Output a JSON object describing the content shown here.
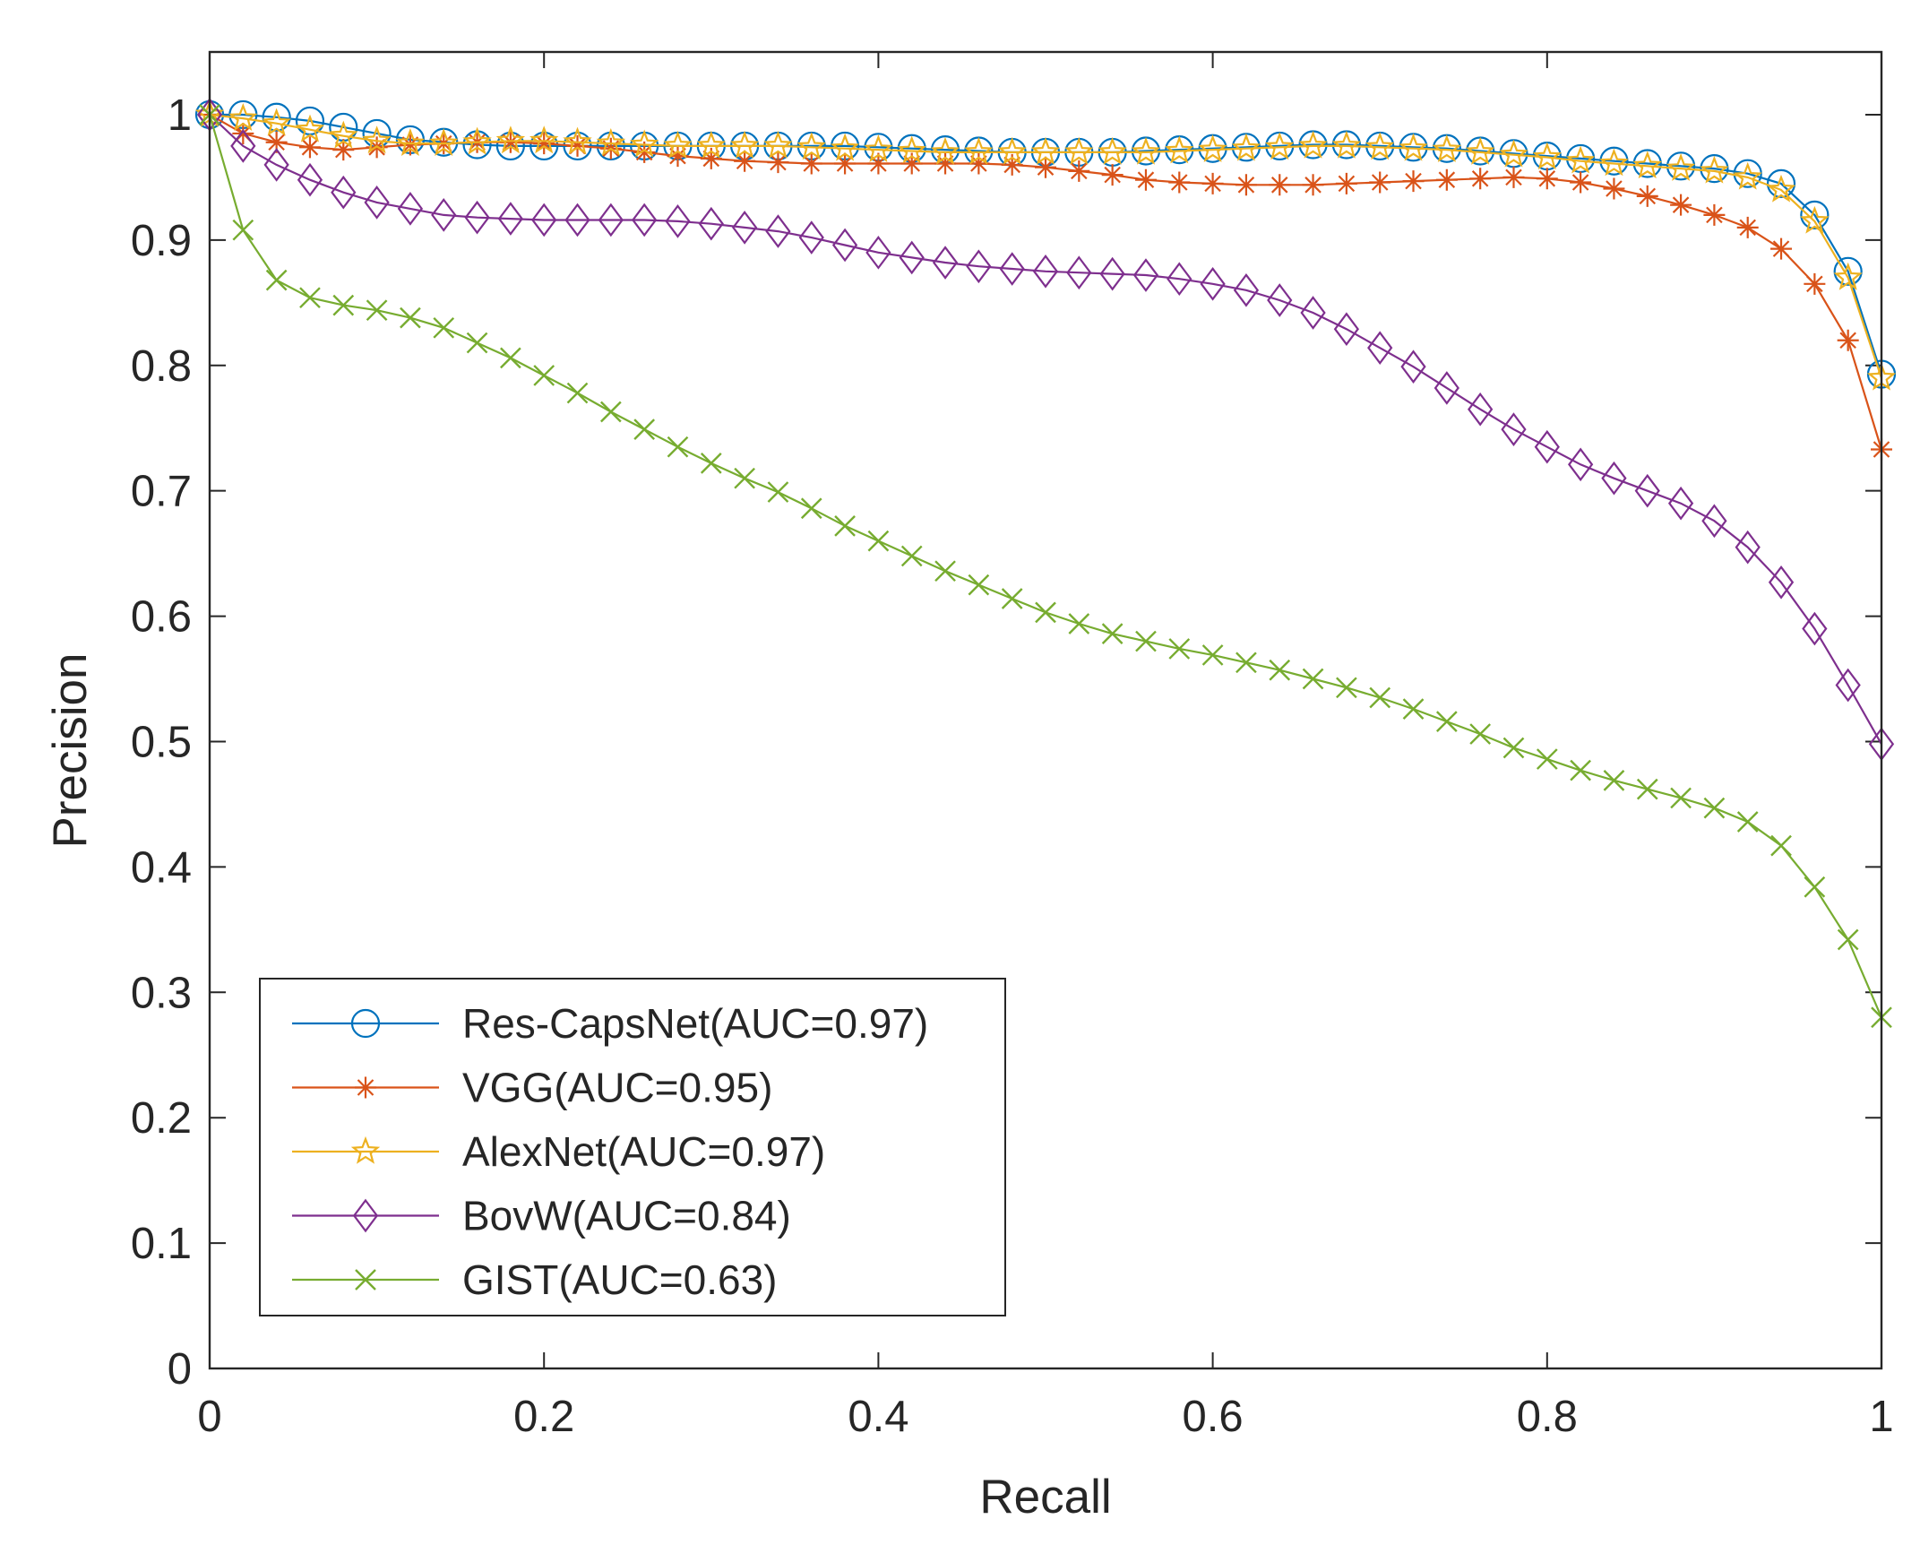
{
  "chart_data": {
    "type": "line",
    "title": "",
    "xlabel": "Recall",
    "ylabel": "Precision",
    "xlim": [
      0,
      1
    ],
    "ylim": [
      0,
      1.05
    ],
    "grid": false,
    "legend_position": "bottom-left",
    "x": [
      0,
      0.02,
      0.04,
      0.06,
      0.08,
      0.1,
      0.12,
      0.14,
      0.16,
      0.18,
      0.2,
      0.22,
      0.24,
      0.26,
      0.28,
      0.3,
      0.32,
      0.34,
      0.36,
      0.38,
      0.4,
      0.42,
      0.44,
      0.46,
      0.48,
      0.5,
      0.52,
      0.54,
      0.56,
      0.58,
      0.6,
      0.62,
      0.64,
      0.66,
      0.68,
      0.7,
      0.72,
      0.74,
      0.76,
      0.78,
      0.8,
      0.82,
      0.84,
      0.86,
      0.88,
      0.9,
      0.92,
      0.94,
      0.96,
      0.98,
      1.0
    ],
    "x_ticks": [
      0,
      0.2,
      0.4,
      0.6,
      0.8,
      1
    ],
    "x_tick_labels": [
      "0",
      "0.2",
      "0.4",
      "0.6",
      "0.8",
      "1"
    ],
    "y_ticks": [
      0,
      0.1,
      0.2,
      0.3,
      0.4,
      0.5,
      0.6,
      0.7,
      0.8,
      0.9,
      1
    ],
    "y_tick_labels": [
      "0",
      "0.1",
      "0.2",
      "0.3",
      "0.4",
      "0.5",
      "0.6",
      "0.7",
      "0.8",
      "0.9",
      "1"
    ],
    "series": [
      {
        "name": "Res-CapsNet(AUC=0.97)",
        "color": "#0072BD",
        "marker": "circle",
        "values": [
          1.0,
          1.0,
          0.998,
          0.995,
          0.99,
          0.985,
          0.98,
          0.978,
          0.976,
          0.975,
          0.975,
          0.975,
          0.975,
          0.975,
          0.975,
          0.975,
          0.975,
          0.975,
          0.975,
          0.975,
          0.974,
          0.973,
          0.972,
          0.971,
          0.97,
          0.97,
          0.97,
          0.97,
          0.971,
          0.972,
          0.973,
          0.974,
          0.975,
          0.976,
          0.976,
          0.975,
          0.974,
          0.973,
          0.971,
          0.969,
          0.967,
          0.965,
          0.963,
          0.961,
          0.959,
          0.957,
          0.953,
          0.945,
          0.92,
          0.875,
          0.793
        ]
      },
      {
        "name": "VGG(AUC=0.95)",
        "color": "#D95319",
        "marker": "asterisk",
        "values": [
          1.0,
          0.985,
          0.978,
          0.974,
          0.972,
          0.974,
          0.976,
          0.977,
          0.978,
          0.978,
          0.977,
          0.975,
          0.973,
          0.97,
          0.967,
          0.965,
          0.963,
          0.962,
          0.961,
          0.961,
          0.961,
          0.961,
          0.961,
          0.961,
          0.96,
          0.958,
          0.955,
          0.952,
          0.948,
          0.946,
          0.945,
          0.944,
          0.944,
          0.944,
          0.945,
          0.946,
          0.947,
          0.948,
          0.949,
          0.95,
          0.949,
          0.946,
          0.941,
          0.935,
          0.928,
          0.92,
          0.91,
          0.893,
          0.865,
          0.82,
          0.733
        ]
      },
      {
        "name": "AlexNet(AUC=0.97)",
        "color": "#EDB120",
        "marker": "star",
        "values": [
          1.0,
          0.997,
          0.993,
          0.988,
          0.983,
          0.979,
          0.977,
          0.977,
          0.978,
          0.979,
          0.979,
          0.978,
          0.977,
          0.976,
          0.975,
          0.975,
          0.975,
          0.975,
          0.974,
          0.973,
          0.972,
          0.971,
          0.97,
          0.97,
          0.97,
          0.97,
          0.97,
          0.97,
          0.97,
          0.971,
          0.972,
          0.973,
          0.974,
          0.975,
          0.975,
          0.974,
          0.973,
          0.972,
          0.97,
          0.968,
          0.966,
          0.963,
          0.961,
          0.959,
          0.957,
          0.955,
          0.95,
          0.94,
          0.915,
          0.87,
          0.79
        ]
      },
      {
        "name": "BovW(AUC=0.84)",
        "color": "#7E2F8E",
        "marker": "diamond",
        "values": [
          1.0,
          0.975,
          0.96,
          0.948,
          0.938,
          0.93,
          0.925,
          0.92,
          0.918,
          0.917,
          0.916,
          0.916,
          0.916,
          0.916,
          0.915,
          0.913,
          0.91,
          0.907,
          0.902,
          0.896,
          0.89,
          0.886,
          0.882,
          0.879,
          0.877,
          0.875,
          0.874,
          0.873,
          0.872,
          0.869,
          0.865,
          0.86,
          0.852,
          0.842,
          0.829,
          0.814,
          0.799,
          0.782,
          0.765,
          0.749,
          0.735,
          0.721,
          0.71,
          0.7,
          0.69,
          0.676,
          0.655,
          0.627,
          0.59,
          0.545,
          0.498
        ]
      },
      {
        "name": "GIST(AUC=0.63)",
        "color": "#77AC30",
        "marker": "x",
        "values": [
          1.0,
          0.908,
          0.868,
          0.854,
          0.848,
          0.844,
          0.838,
          0.83,
          0.818,
          0.806,
          0.792,
          0.778,
          0.763,
          0.749,
          0.735,
          0.722,
          0.71,
          0.699,
          0.686,
          0.672,
          0.66,
          0.648,
          0.636,
          0.625,
          0.614,
          0.603,
          0.594,
          0.586,
          0.58,
          0.574,
          0.569,
          0.563,
          0.557,
          0.55,
          0.543,
          0.535,
          0.526,
          0.516,
          0.506,
          0.495,
          0.486,
          0.477,
          0.469,
          0.462,
          0.455,
          0.447,
          0.436,
          0.417,
          0.384,
          0.342,
          0.28
        ]
      }
    ]
  }
}
